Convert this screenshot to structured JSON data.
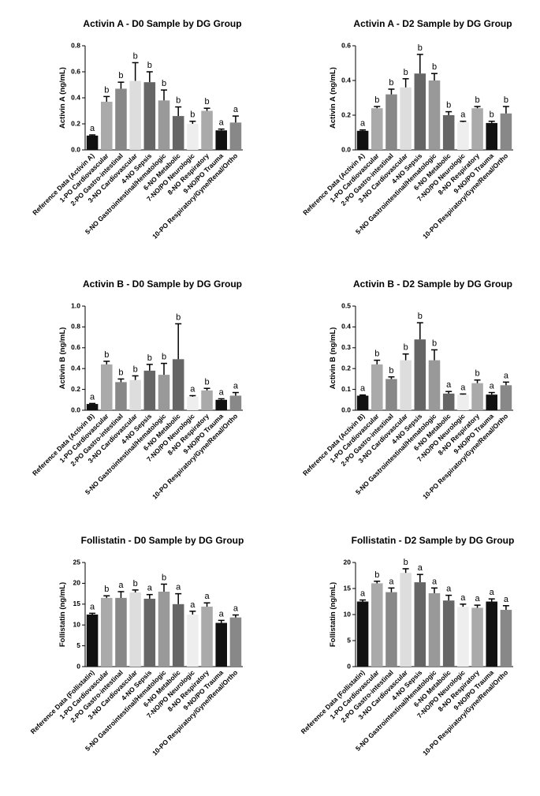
{
  "chart_data": [
    {
      "type": "bar",
      "title": "Activin A - D0 Sample by DG Group",
      "y_label": "Activin A (ng/mL)",
      "categories": [
        "Reference Data (Activin A)",
        "1-PO Cardiovascular",
        "2-PO Gastro-intestinal",
        "3-NO Cardiovascular",
        "4-NO Sepsis",
        "5-NO Gastrointestinal/Hematologic",
        "6-NO Metabolic",
        "7-NO/PO Neurologic",
        "8-NO Respiratory",
        "9-NO/PO Trauma",
        "10-PO Respiratory/Gyne/Renal/Ortho"
      ],
      "values": [
        0.11,
        0.37,
        0.47,
        0.53,
        0.52,
        0.38,
        0.26,
        0.2,
        0.3,
        0.15,
        0.21
      ],
      "errors": [
        0.005,
        0.04,
        0.05,
        0.14,
        0.08,
        0.08,
        0.07,
        0.02,
        0.02,
        0.01,
        0.05
      ],
      "annotations": [
        "a",
        "b",
        "b",
        "b",
        "b",
        "b",
        "b",
        "b",
        "b",
        "a",
        "a"
      ],
      "colors": [
        "#111111",
        "#aaaaaa",
        "#888888",
        "#dddddd",
        "#666666",
        "#999999",
        "#666666",
        "#eeeeee",
        "#aaaaaa",
        "#111111",
        "#888888"
      ],
      "ylim": [
        0,
        0.8
      ],
      "yticks": [
        {
          "value": 0,
          "label": "0.0"
        },
        0.2,
        0.4,
        0.6,
        0.8
      ]
    },
    {
      "type": "bar",
      "title": "Activin A - D2 Sample by DG Group",
      "y_label": "Activin A (ng/mL)",
      "categories": [
        "Reference Data (Activin A)",
        "1-PO Cardiovascular",
        "2-PO Gastro-intestinal",
        "3-NO Cardiovascular",
        "4-NO Sepsis",
        "5-NO Gastrointestinal/Hematologic",
        "6-NO Metabolic",
        "7-NO/PO Neurologic",
        "8-NO Respiratory",
        "9-NO/PO Trauma",
        "10-PO Respiratory/Gyne/Renal/Ortho"
      ],
      "values": [
        0.11,
        0.24,
        0.32,
        0.36,
        0.44,
        0.4,
        0.2,
        0.16,
        0.24,
        0.155,
        0.21
      ],
      "errors": [
        0.005,
        0.01,
        0.03,
        0.05,
        0.11,
        0.04,
        0.02,
        0.005,
        0.01,
        0.01,
        0.04
      ],
      "annotations": [
        "a",
        "b",
        "b",
        "b",
        "b",
        "b",
        "b",
        "a",
        "b",
        "b",
        "b"
      ],
      "colors": [
        "#111111",
        "#aaaaaa",
        "#888888",
        "#dddddd",
        "#666666",
        "#999999",
        "#666666",
        "#eeeeee",
        "#aaaaaa",
        "#111111",
        "#888888"
      ],
      "ylim": [
        0,
        0.6
      ],
      "yticks": [
        {
          "value": 0,
          "label": "0.0"
        },
        0.2,
        0.4,
        0.6
      ]
    },
    {
      "type": "bar",
      "title": "Activin B - D0 Sample by DG Group",
      "y_label": "Activin B (ng/mL)",
      "categories": [
        "Reference Data (Activin B)",
        "1-PO Cardiovascular",
        "2-PO Gastro-intestinal",
        "3-NO Cardiovascular",
        "4-NO Sepsis",
        "5-NO Gastrointestinal/Hematologic",
        "6-NO Metabolic",
        "7-NO/PO Neurologic",
        "8-NO Respiratory",
        "9-NO/PO Trauma",
        "10-PO Respiratory/Gyne/Renal/Ortho"
      ],
      "values": [
        0.06,
        0.44,
        0.27,
        0.29,
        0.38,
        0.34,
        0.49,
        0.13,
        0.19,
        0.1,
        0.14
      ],
      "errors": [
        0.005,
        0.03,
        0.03,
        0.04,
        0.06,
        0.11,
        0.34,
        0.01,
        0.02,
        0.01,
        0.03
      ],
      "annotations": [
        "a",
        "b",
        "b",
        "b",
        "b",
        "b",
        "b",
        "a",
        "b",
        "a",
        "a"
      ],
      "colors": [
        "#111111",
        "#aaaaaa",
        "#888888",
        "#dddddd",
        "#666666",
        "#999999",
        "#666666",
        "#eeeeee",
        "#aaaaaa",
        "#111111",
        "#888888"
      ],
      "ylim": [
        0,
        1.0
      ],
      "yticks": [
        {
          "value": 0,
          "label": "0.0"
        },
        0.2,
        0.4,
        0.6,
        0.8,
        {
          "value": 1.0,
          "label": "1.0"
        }
      ]
    },
    {
      "type": "bar",
      "title": "Activin B - D2 Sample by DG Group",
      "y_label": "Activin B (ng/mL)",
      "categories": [
        "Reference Data (Activin B)",
        "1-PO Cardiovascular",
        "2-PO Gastro-intestinal",
        "3-NO Cardiovascular",
        "4-NO Sepsis",
        "5-NO Gastrointestinal/Hematologic",
        "6-NO Metabolic",
        "7-NO/PO Neurologic",
        "8-NO Respiratory",
        "9-NO/PO Trauma",
        "10-PO Respiratory/Gyne/Renal/Ortho"
      ],
      "values": [
        0.07,
        0.22,
        0.15,
        0.24,
        0.34,
        0.24,
        0.08,
        0.075,
        0.13,
        0.075,
        0.12
      ],
      "errors": [
        0.003,
        0.02,
        0.01,
        0.03,
        0.08,
        0.05,
        0.01,
        0.003,
        0.015,
        0.01,
        0.015
      ],
      "annotations": [
        "a",
        "b",
        "b",
        "b",
        "b",
        "b",
        "a",
        "a",
        "b",
        "a",
        "a"
      ],
      "colors": [
        "#111111",
        "#aaaaaa",
        "#888888",
        "#dddddd",
        "#666666",
        "#999999",
        "#666666",
        "#eeeeee",
        "#aaaaaa",
        "#111111",
        "#888888"
      ],
      "ylim": [
        0,
        0.5
      ],
      "yticks": [
        {
          "value": 0,
          "label": "0.0"
        },
        0.1,
        0.2,
        0.3,
        0.4,
        0.5
      ]
    },
    {
      "type": "bar",
      "title": "Follistatin - D0 Sample by DG Group",
      "y_label": "Follistatin (ng/mL)",
      "categories": [
        "Reference Data (Follistatin)",
        "1-PO Cardiovascular",
        "2-PO Gastro-intestinal",
        "3-NO Cardiovascular",
        "4-NO Sepsis",
        "5-NO Gastrointestinal/Hematologic",
        "6-NO Metabolic",
        "7-NO/PO Neurologic",
        "8-NO Respiratory",
        "9-NO/PO Trauma",
        "10-PO Respiratory/Gyne/Renal/Ortho"
      ],
      "values": [
        12.5,
        16.5,
        16.5,
        17.8,
        16.3,
        18,
        15,
        12.5,
        14.4,
        10.5,
        11.8
      ],
      "errors": [
        0.3,
        0.5,
        1.5,
        0.6,
        1,
        1.8,
        2.5,
        0.8,
        0.9,
        0.6,
        0.6
      ],
      "annotations": [
        "a",
        "b",
        "a",
        "b",
        "a",
        "b",
        "a",
        "a",
        "a",
        "a",
        "a"
      ],
      "colors": [
        "#111111",
        "#aaaaaa",
        "#888888",
        "#dddddd",
        "#666666",
        "#999999",
        "#666666",
        "#eeeeee",
        "#aaaaaa",
        "#111111",
        "#888888"
      ],
      "ylim": [
        0,
        25
      ],
      "yticks": [
        0,
        5,
        10,
        15,
        20,
        25
      ]
    },
    {
      "type": "bar",
      "title": "Follistatin - D2 Sample by DG Group",
      "y_label": "Follistatin (ng/mL)",
      "categories": [
        "Reference Data (Follistatin)",
        "1-PO Cardiovascular",
        "2-PO Gastro-intestinal",
        "3-NO Cardiovascular",
        "4-NO Sepsis",
        "5-NO Gastrointestinal/Hematologic",
        "6-NO Metabolic",
        "7-NO/PO Neurologic",
        "8-NO Respiratory",
        "9-NO/PO Trauma",
        "10-PO Respiratory/Gyne/Renal/Ortho"
      ],
      "values": [
        12.5,
        16,
        14.3,
        18,
        16.2,
        14.1,
        12.7,
        11.5,
        11.3,
        12.5,
        10.9
      ],
      "errors": [
        0.3,
        0.4,
        0.8,
        0.8,
        1.5,
        1,
        1,
        0.5,
        0.5,
        0.5,
        0.8
      ],
      "annotations": [
        "a",
        "b",
        "a",
        "b",
        "a",
        "a",
        "a",
        "a",
        "a",
        "a",
        "a"
      ],
      "colors": [
        "#111111",
        "#aaaaaa",
        "#888888",
        "#dddddd",
        "#666666",
        "#999999",
        "#666666",
        "#eeeeee",
        "#aaaaaa",
        "#111111",
        "#888888"
      ],
      "ylim": [
        0,
        20
      ],
      "yticks": [
        0,
        5,
        10,
        15,
        20
      ]
    }
  ]
}
